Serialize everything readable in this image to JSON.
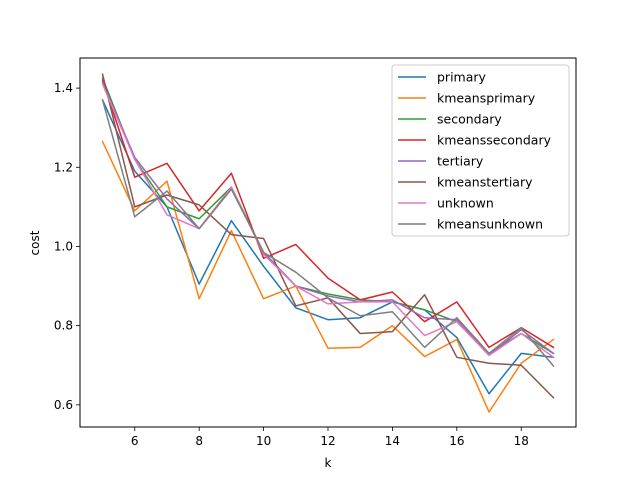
{
  "chart_data": {
    "type": "line",
    "xlabel": "k",
    "ylabel": "cost",
    "xlim": [
      4.3,
      19.7
    ],
    "ylim": [
      0.544,
      1.476
    ],
    "xticks": [
      6,
      8,
      10,
      12,
      14,
      16,
      18
    ],
    "yticks": [
      0.6,
      0.8,
      1.0,
      1.2,
      1.4
    ],
    "xtick_labels": [
      "6",
      "8",
      "10",
      "12",
      "14",
      "16",
      "18"
    ],
    "ytick_labels": [
      "0.6",
      "0.8",
      "1.0",
      "1.2",
      "1.4"
    ],
    "grid": false,
    "legend_position": "top-right",
    "x": [
      5,
      6,
      7,
      8,
      9,
      10,
      11,
      12,
      13,
      14,
      15,
      16,
      17,
      18,
      19
    ],
    "series": [
      {
        "name": "primary",
        "color": "#1f77b4",
        "values": [
          1.37,
          1.19,
          1.1,
          0.905,
          1.065,
          0.95,
          0.845,
          0.815,
          0.82,
          0.86,
          0.84,
          0.77,
          0.628,
          0.73,
          0.72
        ]
      },
      {
        "name": "kmeansprimary",
        "color": "#ff7f0e",
        "values": [
          1.265,
          1.09,
          1.165,
          0.868,
          1.04,
          0.868,
          0.9,
          0.743,
          0.745,
          0.8,
          0.722,
          0.765,
          0.582,
          0.705,
          0.765
        ]
      },
      {
        "name": "secondary",
        "color": "#2ca02c",
        "values": [
          1.425,
          1.22,
          1.1,
          1.07,
          1.15,
          0.985,
          0.9,
          0.88,
          0.865,
          0.86,
          0.84,
          0.81,
          0.73,
          0.78,
          0.73
        ]
      },
      {
        "name": "kmeanssecondary",
        "color": "#d62728",
        "values": [
          1.42,
          1.175,
          1.21,
          1.09,
          1.185,
          0.97,
          1.005,
          0.92,
          0.865,
          0.885,
          0.81,
          0.86,
          0.745,
          0.795,
          0.745
        ]
      },
      {
        "name": "tertiary",
        "color": "#9467bd",
        "values": [
          1.415,
          1.225,
          1.12,
          1.045,
          1.145,
          0.985,
          0.9,
          0.875,
          0.86,
          0.865,
          0.82,
          0.815,
          0.725,
          0.79,
          0.73
        ]
      },
      {
        "name": "kmeanstertiary",
        "color": "#8c564b",
        "values": [
          1.435,
          1.1,
          1.13,
          1.105,
          1.03,
          1.02,
          0.85,
          0.87,
          0.78,
          0.785,
          0.878,
          0.72,
          0.705,
          0.7,
          0.618
        ]
      },
      {
        "name": "unknown",
        "color": "#e377c2",
        "values": [
          1.41,
          1.22,
          1.08,
          1.045,
          1.15,
          0.98,
          0.9,
          0.855,
          0.86,
          0.86,
          0.775,
          0.81,
          0.725,
          0.78,
          0.72
        ]
      },
      {
        "name": "kmeansunknown",
        "color": "#7f7f7f",
        "values": [
          1.37,
          1.075,
          1.14,
          1.045,
          1.145,
          0.985,
          0.935,
          0.87,
          0.825,
          0.835,
          0.745,
          0.82,
          0.73,
          0.795,
          0.698
        ]
      }
    ]
  }
}
